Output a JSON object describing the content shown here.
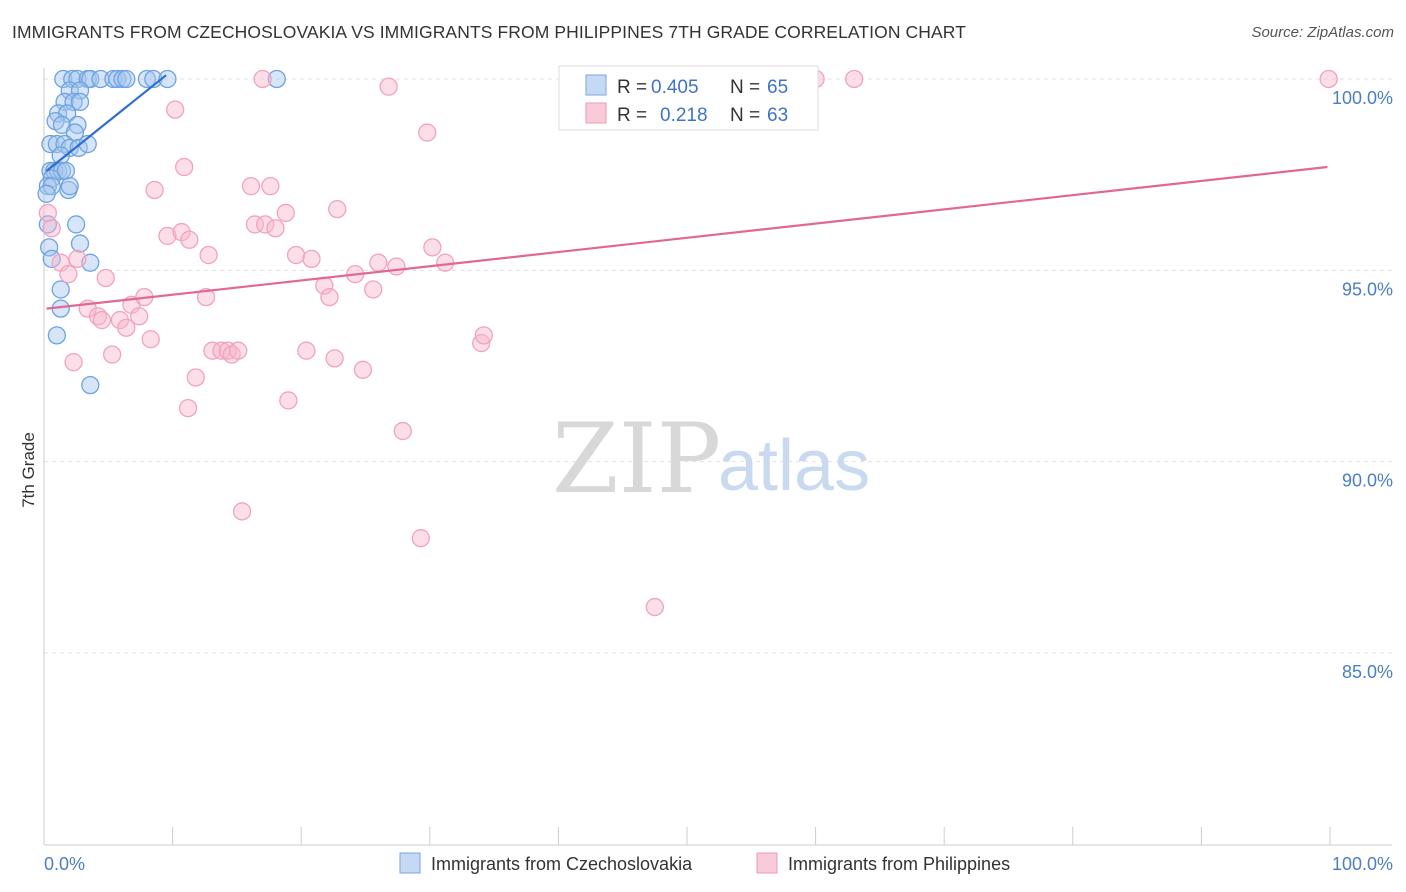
{
  "header": {
    "title": "IMMIGRANTS FROM CZECHOSLOVAKIA VS IMMIGRANTS FROM PHILIPPINES 7TH GRADE CORRELATION CHART",
    "source": "Source: ZipAtlas.com"
  },
  "watermark": {
    "zip": "ZIP",
    "atlas": "atlas"
  },
  "chart_data": {
    "type": "scatter",
    "title": "IMMIGRANTS FROM CZECHOSLOVAKIA VS IMMIGRANTS FROM PHILIPPINES 7TH GRADE CORRELATION CHART",
    "xlabel": "",
    "ylabel": "7th Grade",
    "xlim": [
      0,
      100
    ],
    "ylim": [
      80.5,
      100.6
    ],
    "x_tick_labels": [
      {
        "value": 0,
        "label": "0.0%"
      },
      {
        "value": 100,
        "label": "100.0%"
      }
    ],
    "x_minor_ticks": [
      0,
      10,
      20,
      30,
      40,
      50,
      60,
      70,
      80,
      90,
      100
    ],
    "y_ticks": [
      {
        "value": 100,
        "label": "100.0%"
      },
      {
        "value": 95,
        "label": "95.0%"
      },
      {
        "value": 90,
        "label": "90.0%"
      },
      {
        "value": 85,
        "label": "85.0%"
      }
    ],
    "grid": true,
    "legend_position": "top-center",
    "series": [
      {
        "name": "Immigrants from Czechoslovakia",
        "color": "#6fa3e0",
        "line_color": "#2e6fd0",
        "R": "0.405",
        "N": "65",
        "trend": {
          "x": [
            0.2,
            9.5
          ],
          "y": [
            97.6,
            100.1
          ]
        },
        "points": [
          {
            "x": 1.5,
            "y": 100.0
          },
          {
            "x": 2.2,
            "y": 100.0
          },
          {
            "x": 2.6,
            "y": 100.0
          },
          {
            "x": 3.4,
            "y": 100.0
          },
          {
            "x": 3.6,
            "y": 100.0
          },
          {
            "x": 4.4,
            "y": 100.0
          },
          {
            "x": 5.4,
            "y": 100.0
          },
          {
            "x": 5.7,
            "y": 100.0
          },
          {
            "x": 6.1,
            "y": 100.0
          },
          {
            "x": 6.4,
            "y": 100.0
          },
          {
            "x": 8.0,
            "y": 100.0
          },
          {
            "x": 8.5,
            "y": 100.0
          },
          {
            "x": 9.6,
            "y": 100.0
          },
          {
            "x": 18.1,
            "y": 100.0
          },
          {
            "x": 2.0,
            "y": 99.7
          },
          {
            "x": 2.8,
            "y": 99.7
          },
          {
            "x": 1.6,
            "y": 99.4
          },
          {
            "x": 2.3,
            "y": 99.4
          },
          {
            "x": 2.8,
            "y": 99.4
          },
          {
            "x": 1.1,
            "y": 99.1
          },
          {
            "x": 1.8,
            "y": 99.1
          },
          {
            "x": 0.9,
            "y": 98.9
          },
          {
            "x": 1.4,
            "y": 98.8
          },
          {
            "x": 2.6,
            "y": 98.8
          },
          {
            "x": 2.4,
            "y": 98.6
          },
          {
            "x": 0.5,
            "y": 98.3
          },
          {
            "x": 1.0,
            "y": 98.3
          },
          {
            "x": 1.6,
            "y": 98.3
          },
          {
            "x": 2.0,
            "y": 98.2
          },
          {
            "x": 2.7,
            "y": 98.2
          },
          {
            "x": 3.4,
            "y": 98.3
          },
          {
            "x": 1.3,
            "y": 98.0
          },
          {
            "x": 0.5,
            "y": 97.6
          },
          {
            "x": 0.8,
            "y": 97.6
          },
          {
            "x": 1.1,
            "y": 97.6
          },
          {
            "x": 1.4,
            "y": 97.6
          },
          {
            "x": 1.7,
            "y": 97.6
          },
          {
            "x": 0.6,
            "y": 97.4
          },
          {
            "x": 0.3,
            "y": 97.2
          },
          {
            "x": 0.6,
            "y": 97.2
          },
          {
            "x": 1.9,
            "y": 97.1
          },
          {
            "x": 2.0,
            "y": 97.2
          },
          {
            "x": 0.2,
            "y": 97.0
          },
          {
            "x": 0.3,
            "y": 96.2
          },
          {
            "x": 2.5,
            "y": 96.2
          },
          {
            "x": 2.8,
            "y": 95.7
          },
          {
            "x": 0.4,
            "y": 95.6
          },
          {
            "x": 0.6,
            "y": 95.3
          },
          {
            "x": 3.6,
            "y": 95.2
          },
          {
            "x": 1.3,
            "y": 94.5
          },
          {
            "x": 1.3,
            "y": 94.0
          },
          {
            "x": 1.0,
            "y": 93.3
          },
          {
            "x": 3.6,
            "y": 92.0
          }
        ]
      },
      {
        "name": "Immigrants from Philippines",
        "color": "#f1a3bd",
        "line_color": "#e06892",
        "R": "0.218",
        "N": "63",
        "trend": {
          "x": [
            0.2,
            99.8
          ],
          "y": [
            94.0,
            97.7
          ]
        },
        "points": [
          {
            "x": 0.3,
            "y": 96.5
          },
          {
            "x": 0.6,
            "y": 96.1
          },
          {
            "x": 1.3,
            "y": 95.2
          },
          {
            "x": 1.9,
            "y": 94.9
          },
          {
            "x": 2.6,
            "y": 95.3
          },
          {
            "x": 3.4,
            "y": 94.0
          },
          {
            "x": 4.2,
            "y": 93.8
          },
          {
            "x": 4.5,
            "y": 93.7
          },
          {
            "x": 4.8,
            "y": 94.8
          },
          {
            "x": 5.3,
            "y": 92.8
          },
          {
            "x": 2.3,
            "y": 92.6
          },
          {
            "x": 5.9,
            "y": 93.7
          },
          {
            "x": 6.4,
            "y": 93.5
          },
          {
            "x": 6.8,
            "y": 94.1
          },
          {
            "x": 7.4,
            "y": 93.8
          },
          {
            "x": 7.8,
            "y": 94.3
          },
          {
            "x": 8.3,
            "y": 93.2
          },
          {
            "x": 8.6,
            "y": 97.1
          },
          {
            "x": 9.6,
            "y": 95.9
          },
          {
            "x": 10.2,
            "y": 99.2
          },
          {
            "x": 10.7,
            "y": 96.0
          },
          {
            "x": 10.9,
            "y": 97.7
          },
          {
            "x": 11.3,
            "y": 95.8
          },
          {
            "x": 11.2,
            "y": 91.4
          },
          {
            "x": 11.8,
            "y": 92.2
          },
          {
            "x": 12.6,
            "y": 94.3
          },
          {
            "x": 12.8,
            "y": 95.4
          },
          {
            "x": 13.1,
            "y": 92.9
          },
          {
            "x": 13.8,
            "y": 92.9
          },
          {
            "x": 14.3,
            "y": 92.9
          },
          {
            "x": 14.6,
            "y": 92.8
          },
          {
            "x": 15.1,
            "y": 92.9
          },
          {
            "x": 15.4,
            "y": 88.7
          },
          {
            "x": 16.1,
            "y": 97.2
          },
          {
            "x": 16.4,
            "y": 96.2
          },
          {
            "x": 17.2,
            "y": 96.2
          },
          {
            "x": 17.6,
            "y": 97.2
          },
          {
            "x": 18.0,
            "y": 96.1
          },
          {
            "x": 18.8,
            "y": 96.5
          },
          {
            "x": 17.0,
            "y": 100.0
          },
          {
            "x": 19.0,
            "y": 91.6
          },
          {
            "x": 19.6,
            "y": 95.4
          },
          {
            "x": 20.4,
            "y": 92.9
          },
          {
            "x": 20.8,
            "y": 95.3
          },
          {
            "x": 21.8,
            "y": 94.6
          },
          {
            "x": 22.2,
            "y": 94.3
          },
          {
            "x": 22.8,
            "y": 96.6
          },
          {
            "x": 22.6,
            "y": 92.7
          },
          {
            "x": 24.2,
            "y": 94.9
          },
          {
            "x": 24.8,
            "y": 92.4
          },
          {
            "x": 25.6,
            "y": 94.5
          },
          {
            "x": 26.0,
            "y": 95.2
          },
          {
            "x": 26.8,
            "y": 99.8
          },
          {
            "x": 27.4,
            "y": 95.1
          },
          {
            "x": 27.9,
            "y": 90.8
          },
          {
            "x": 29.3,
            "y": 88.0
          },
          {
            "x": 29.8,
            "y": 98.6
          },
          {
            "x": 30.2,
            "y": 95.6
          },
          {
            "x": 31.2,
            "y": 95.2
          },
          {
            "x": 34.0,
            "y": 93.1
          },
          {
            "x": 34.2,
            "y": 93.3
          },
          {
            "x": 47.5,
            "y": 86.2
          },
          {
            "x": 60.0,
            "y": 100.0
          },
          {
            "x": 63.0,
            "y": 100.0
          },
          {
            "x": 99.9,
            "y": 100.0
          }
        ]
      }
    ]
  },
  "legend": {
    "r_label": "R =",
    "n_label": "N =",
    "items": [
      {
        "r": "0.405",
        "n": "65"
      },
      {
        "r": "0.218",
        "n": "63"
      }
    ]
  },
  "bottom_legend": {
    "items": [
      {
        "label": "Immigrants from Czechoslovakia"
      },
      {
        "label": "Immigrants from Philippines"
      }
    ]
  }
}
